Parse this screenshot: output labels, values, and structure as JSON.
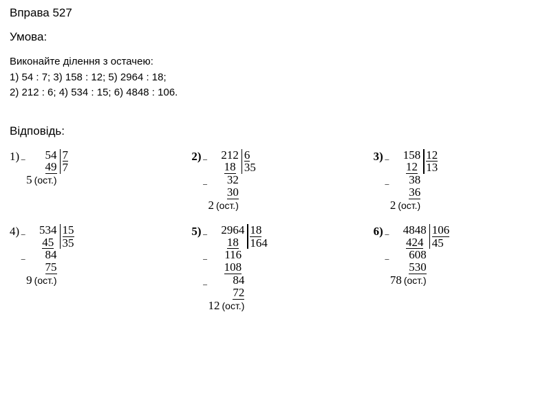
{
  "title": "Вправа 527",
  "umova_label": "Умова:",
  "task_prompt": "Виконайте ділення з остачею:",
  "task_line1": "1) 54 : 7;   3) 158 : 12; 5) 2964 : 18;",
  "task_line2": "2) 212 : 6; 4) 534 : 15; 6) 4848 : 106.",
  "answer_label": "Відповідь:",
  "ost_text": "(ост.)",
  "solutions": {
    "s1": {
      "num": "1)",
      "dividend": "54",
      "sub1": "49",
      "rem": "5",
      "divisor": "7",
      "quotient": "7"
    },
    "s2": {
      "num": "2)",
      "dividend": "212",
      "sub1": "18",
      "part2": "32",
      "sub2": "30",
      "rem": "2",
      "divisor": "6",
      "quotient": "35"
    },
    "s3": {
      "num": "3)",
      "dividend": "158",
      "sub1": "12",
      "part2": "38",
      "sub2": "36",
      "rem": "2",
      "divisor": "12",
      "quotient": "13"
    },
    "s4": {
      "num": "4)",
      "dividend": "534",
      "sub1": "45",
      "part2": "84",
      "sub2": "75",
      "rem": "9",
      "divisor": "15",
      "quotient": "35"
    },
    "s5": {
      "num": "5)",
      "dividend": "2964",
      "sub1": "18",
      "part2": "116",
      "sub2": "108",
      "part3": "84",
      "sub3": "72",
      "rem": "12",
      "divisor": "18",
      "quotient": "164"
    },
    "s6": {
      "num": "6)",
      "dividend": "4848",
      "sub1": "424",
      "part2": "608",
      "sub2": "530",
      "rem": "78",
      "divisor": "106",
      "quotient": "45"
    }
  },
  "style": {
    "font_family_main": "Arial",
    "font_family_math": "Georgia",
    "font_size_title": 17,
    "font_size_body": 15,
    "font_size_math": 17,
    "color_text": "#000000",
    "color_bg": "#ffffff",
    "line_thickness": 1.5
  }
}
